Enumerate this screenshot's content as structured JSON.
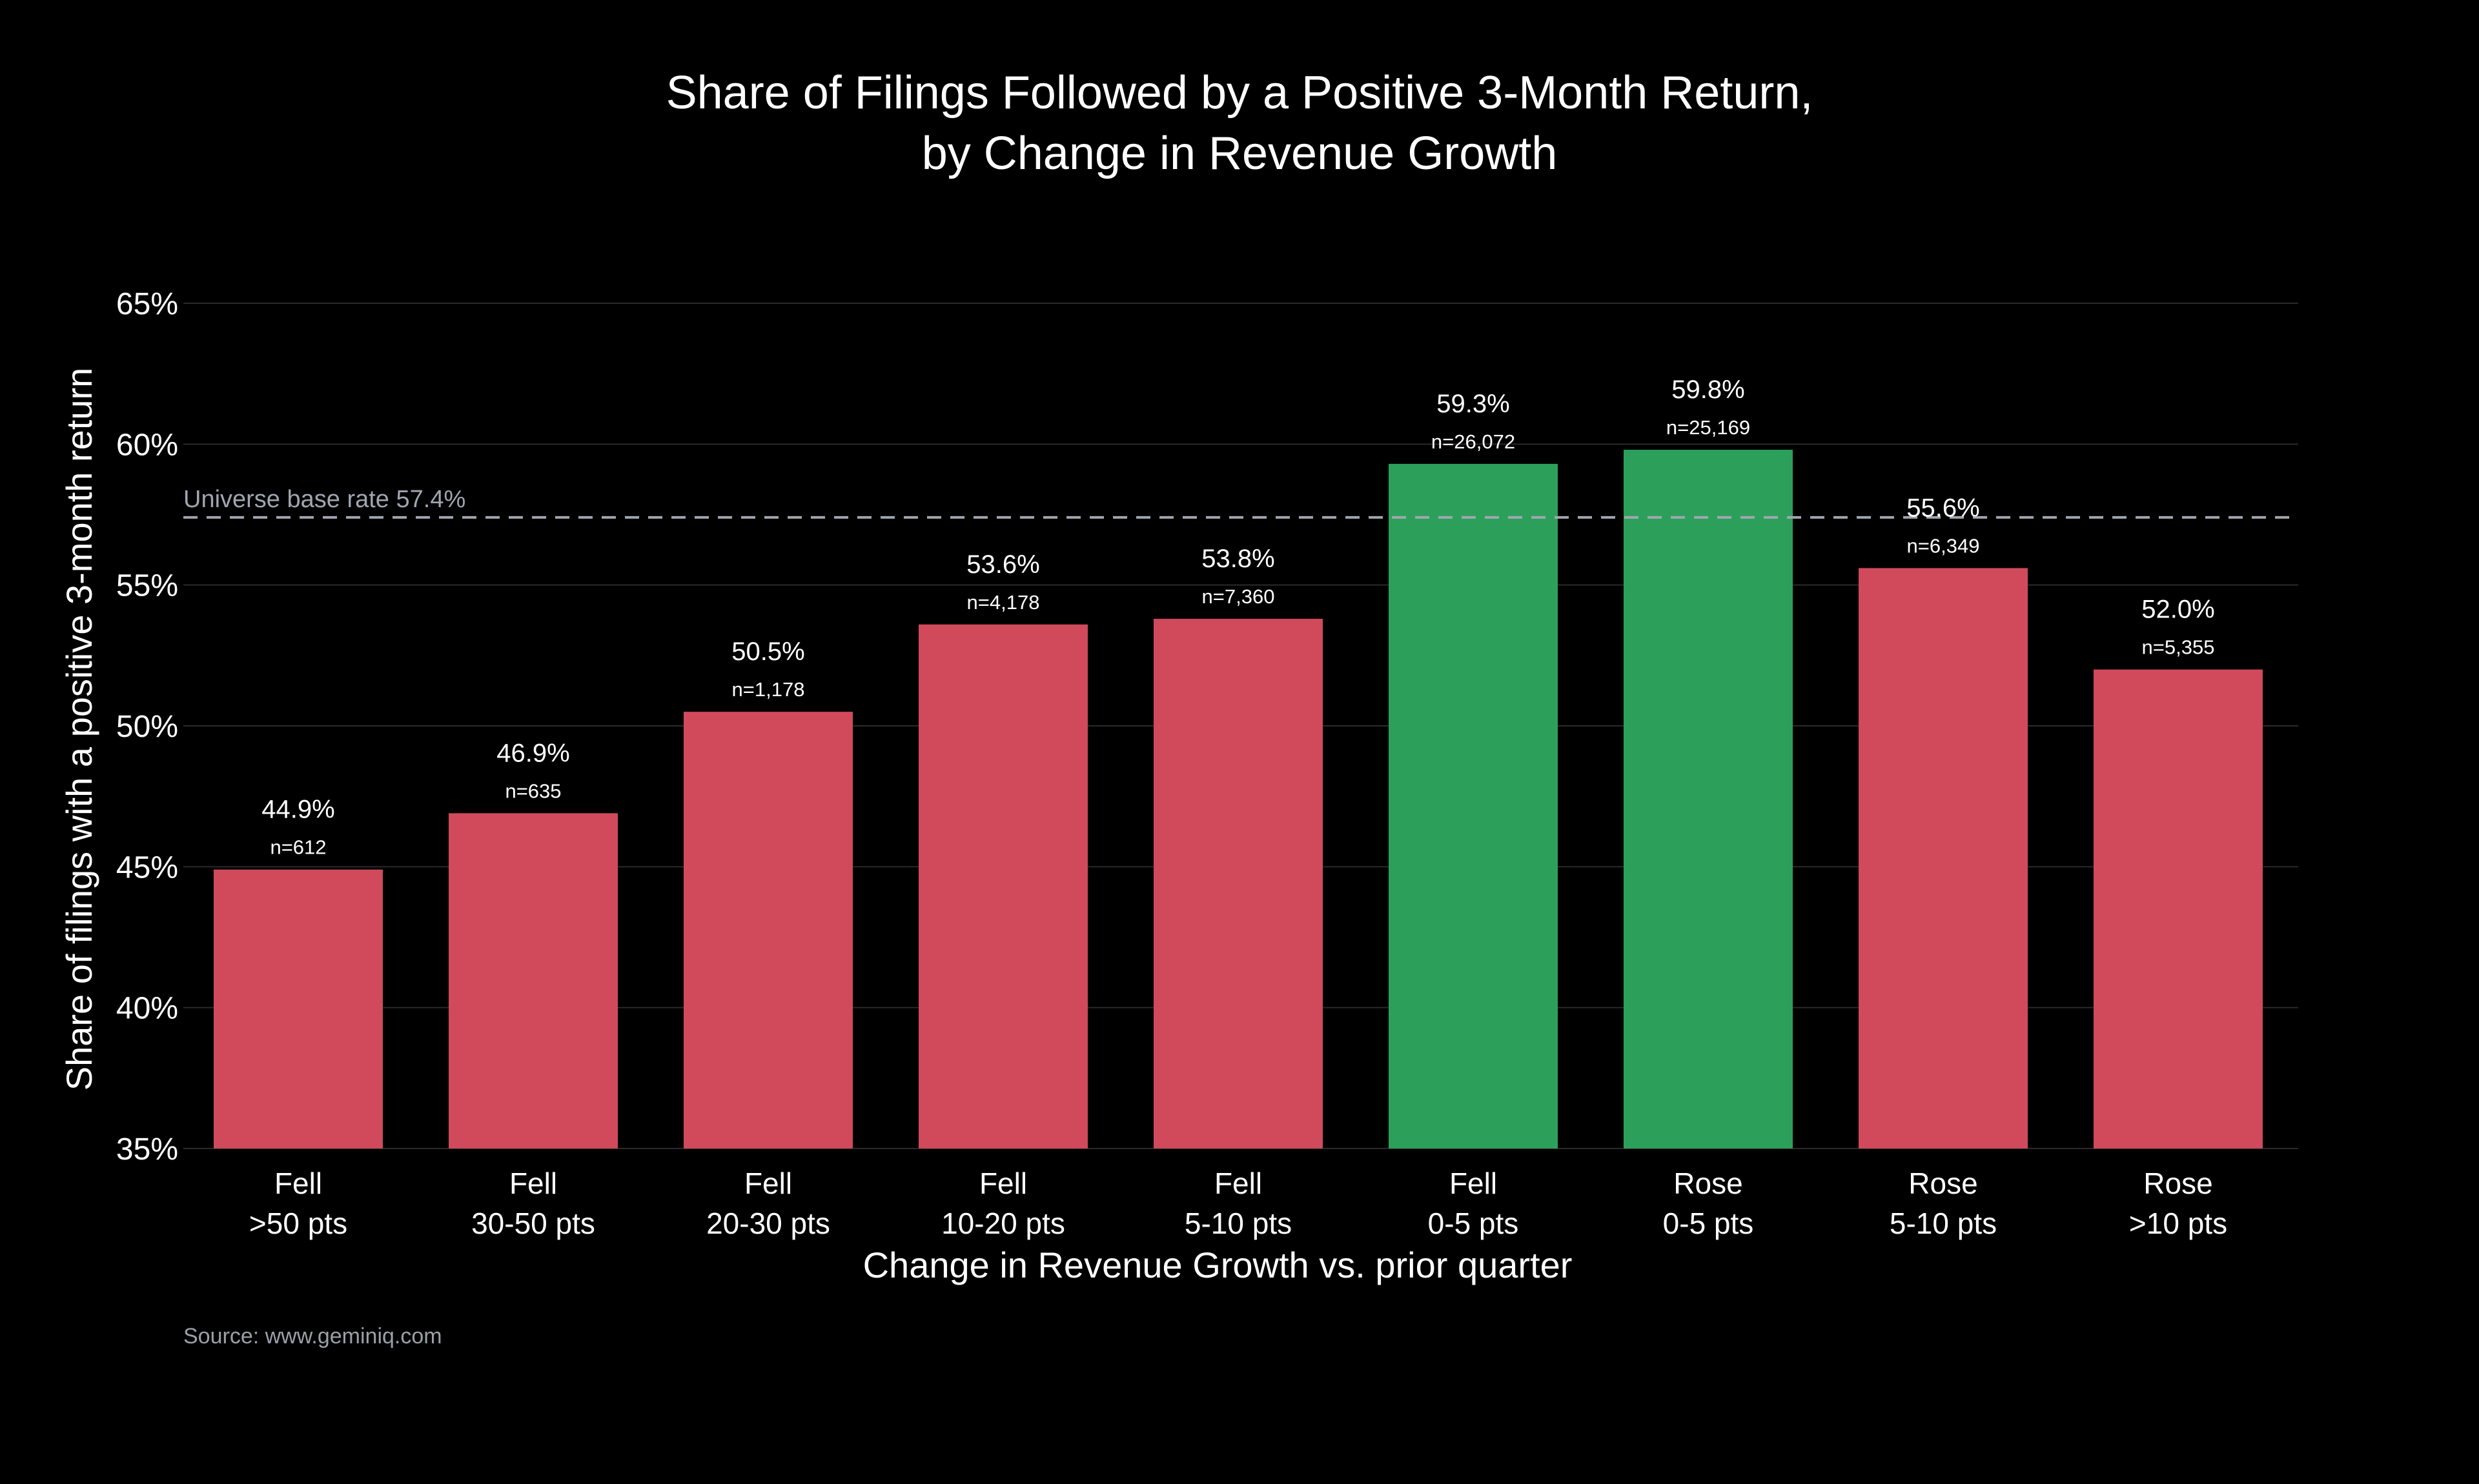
{
  "chart_data": {
    "type": "bar",
    "title": [
      "Share of Filings Followed by a Positive 3-Month Return,",
      "by Change in Revenue Growth"
    ],
    "xlabel": "Change in Revenue Growth vs. prior quarter",
    "ylabel": "Share of filings with a positive 3-month return",
    "ylim": [
      35,
      65
    ],
    "yticks": [
      35,
      40,
      45,
      50,
      55,
      60,
      65
    ],
    "ytick_labels": [
      "35%",
      "40%",
      "45%",
      "50%",
      "55%",
      "60%",
      "65%"
    ],
    "grid": true,
    "categories": [
      [
        "Fell",
        ">50 pts"
      ],
      [
        "Fell",
        "30-50 pts"
      ],
      [
        "Fell",
        "20-30 pts"
      ],
      [
        "Fell",
        "10-20 pts"
      ],
      [
        "Fell",
        "5-10 pts"
      ],
      [
        "Fell",
        "0-5 pts"
      ],
      [
        "Rose",
        "0-5 pts"
      ],
      [
        "Rose",
        "5-10 pts"
      ],
      [
        "Rose",
        ">10 pts"
      ]
    ],
    "values": [
      44.9,
      46.9,
      50.5,
      53.6,
      53.8,
      59.3,
      59.8,
      55.6,
      52.0
    ],
    "value_labels": [
      "44.9%",
      "46.9%",
      "50.5%",
      "53.6%",
      "53.8%",
      "59.3%",
      "59.8%",
      "55.6%",
      "52.0%"
    ],
    "counts": [
      "n=612",
      "n=635",
      "n=1,178",
      "n=4,178",
      "n=7,360",
      "n=26,072",
      "n=25,169",
      "n=6,349",
      "n=5,355"
    ],
    "bar_colors": [
      "#d04a5c",
      "#d04a5c",
      "#d04a5c",
      "#d04a5c",
      "#d04a5c",
      "#2ca05a",
      "#2ca05a",
      "#d04a5c",
      "#d04a5c"
    ],
    "reference_line": {
      "value": 57.4,
      "label": "Universe base rate 57.4%",
      "color": "#a0a6b0",
      "style": "dashed"
    },
    "source": "Source: www.geminiq.com"
  }
}
